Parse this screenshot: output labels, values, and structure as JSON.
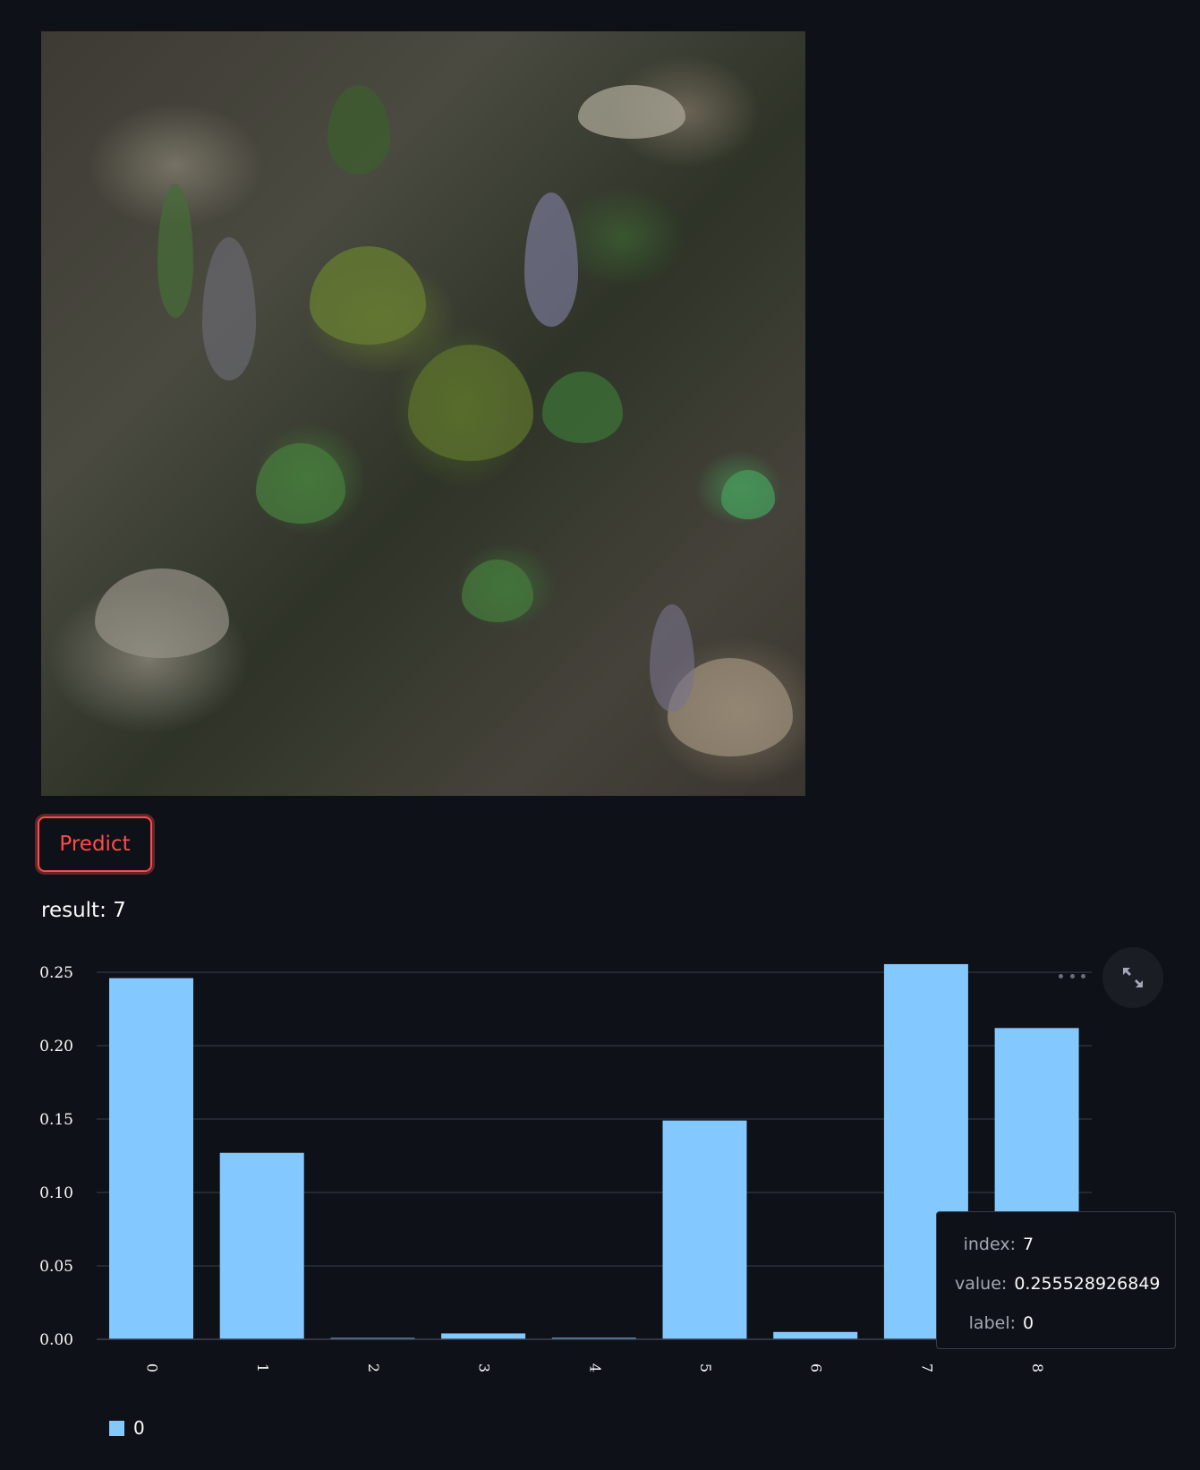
{
  "predict_button": {
    "label": "Predict"
  },
  "result": {
    "text": "result: 7"
  },
  "chart_data": {
    "type": "bar",
    "categories": [
      "0",
      "1",
      "2",
      "3",
      "4",
      "5",
      "6",
      "7",
      "8"
    ],
    "series": [
      {
        "name": "0",
        "values": [
          0.246,
          0.127,
          0.0005,
          0.004,
          0.001,
          0.149,
          0.005,
          0.255528926849,
          0.212
        ]
      }
    ],
    "y_ticks": [
      "0.00",
      "0.05",
      "0.10",
      "0.15",
      "0.20",
      "0.25"
    ],
    "ylim": [
      0,
      0.25
    ],
    "grid": true,
    "legend_position": "bottom-left",
    "bar_color": "#83c9ff"
  },
  "legend": {
    "label": "0"
  },
  "tooltip": {
    "index_key": "index:",
    "index_val": "7",
    "value_key": "value:",
    "value_val": "0.255528926849",
    "label_key": "label:",
    "label_val": "0"
  },
  "icons": {
    "more": "more-horizontal-icon",
    "expand": "expand-icon"
  }
}
